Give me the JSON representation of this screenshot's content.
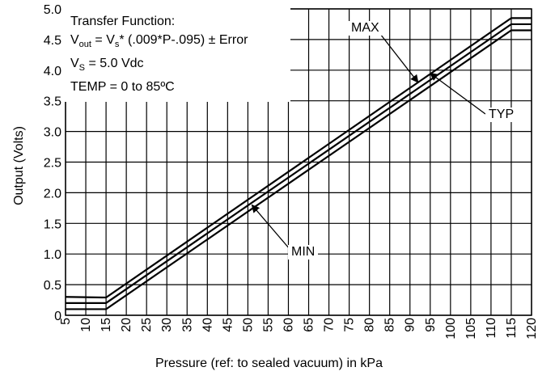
{
  "chart_data": {
    "type": "line",
    "title": "",
    "xlabel": "Pressure (ref: to sealed vacuum) in kPa",
    "ylabel": "Output (Volts)",
    "xlim": [
      5,
      120
    ],
    "ylim": [
      0,
      5.0
    ],
    "x_ticks": [
      "5",
      "10",
      "15",
      "20",
      "25",
      "30",
      "35",
      "40",
      "45",
      "50",
      "55",
      "60",
      "65",
      "70",
      "75",
      "80",
      "85",
      "90",
      "95",
      "100",
      "105",
      "110",
      "115",
      "120"
    ],
    "y_ticks": [
      "0",
      "0.5",
      "1.0",
      "1.5",
      "2.0",
      "2.5",
      "3.0",
      "3.5",
      "4.0",
      "4.5",
      "5.0"
    ],
    "grid": true,
    "series": [
      {
        "name": "MAX",
        "points": [
          [
            5,
            0.3
          ],
          [
            15,
            0.29
          ],
          [
            115,
            4.85
          ],
          [
            120,
            4.85
          ]
        ]
      },
      {
        "name": "TYP",
        "points": [
          [
            5,
            0.2
          ],
          [
            15,
            0.2
          ],
          [
            115,
            4.75
          ],
          [
            120,
            4.75
          ]
        ]
      },
      {
        "name": "MIN",
        "points": [
          [
            5,
            0.1
          ],
          [
            15,
            0.1
          ],
          [
            115,
            4.65
          ],
          [
            120,
            4.65
          ]
        ]
      }
    ],
    "annotations": {
      "transfer_title": "Transfer Function:",
      "equation": {
        "v": "V",
        "out_sub": "out",
        "eq": " = V",
        "s_sub": "s",
        "rest": "* (.009*P-.095) ± Error"
      },
      "vs_line": {
        "v": "V",
        "sub": "S",
        "rest": " = 5.0 Vdc"
      },
      "temp_line": "TEMP = 0 to 85ºC"
    },
    "callouts": [
      {
        "label": "MAX",
        "target": [
          92,
          3.8
        ]
      },
      {
        "label": "TYP",
        "target": [
          95,
          3.95
        ]
      },
      {
        "label": "MIN",
        "target": [
          51,
          1.8
        ]
      }
    ]
  }
}
